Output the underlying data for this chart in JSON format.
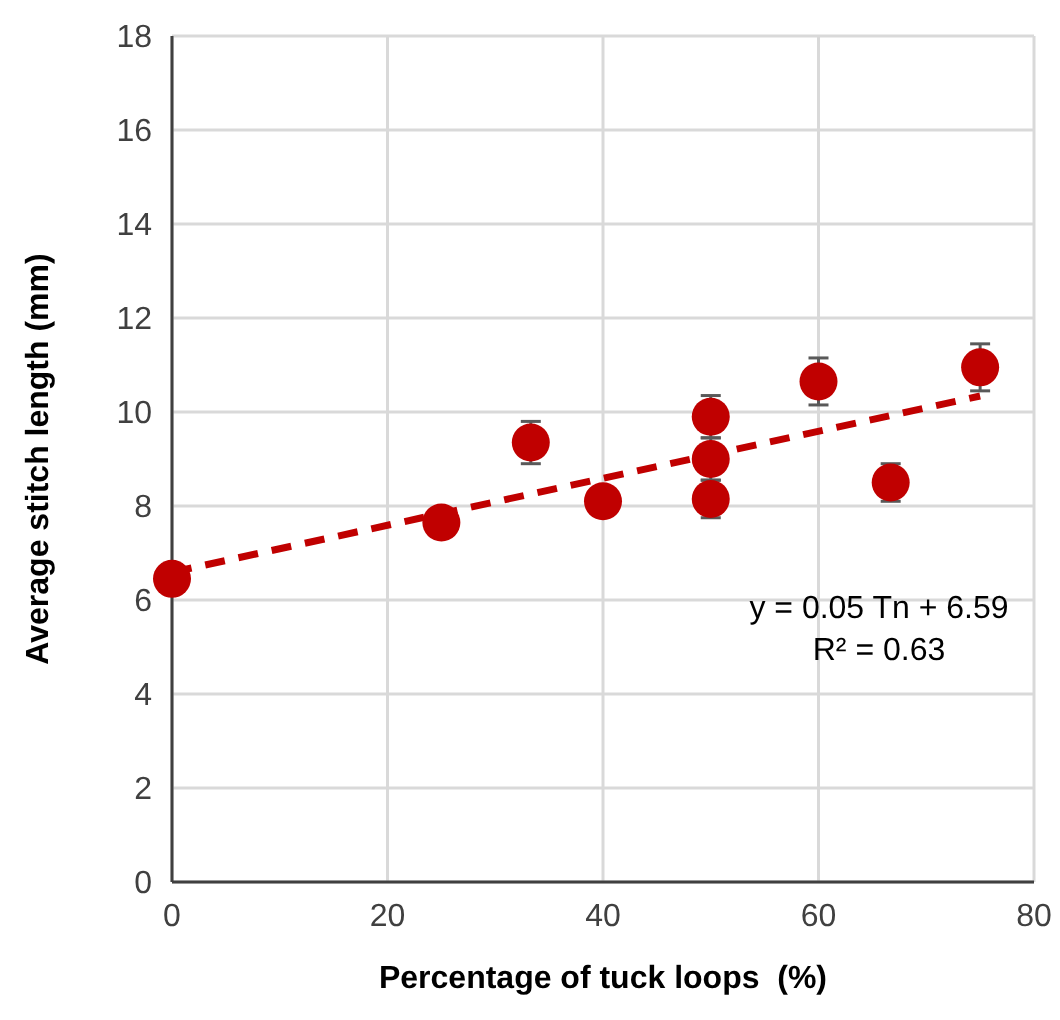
{
  "chart_data": {
    "type": "scatter",
    "xlabel": "Percentage of tuck loops  (%)",
    "ylabel": "Average stitch length (mm)",
    "xlim": [
      0,
      80
    ],
    "ylim": [
      0,
      18
    ],
    "xticks": [
      0,
      20,
      40,
      60,
      80
    ],
    "yticks": [
      0,
      2,
      4,
      6,
      8,
      10,
      12,
      14,
      16,
      18
    ],
    "grid": true,
    "series": [
      {
        "marker": "circle",
        "color": "#c00000",
        "x": [
          0,
          25,
          33.3,
          40,
          50,
          50,
          50,
          60,
          66.7,
          75
        ],
        "values": [
          6.45,
          7.65,
          9.35,
          8.1,
          9.9,
          9.0,
          8.15,
          10.65,
          8.5,
          10.95
        ],
        "errors": [
          null,
          null,
          0.45,
          null,
          0.45,
          0.45,
          0.4,
          0.5,
          0.4,
          0.5
        ]
      },
      {
        "type": "line",
        "color": "#c00000",
        "line_style": "dashed",
        "x": [
          0,
          75
        ],
        "values": [
          6.59,
          10.34
        ]
      }
    ],
    "annotations": [
      "y = 0.05 Tn + 6.59",
      "R² = 0.63"
    ]
  }
}
